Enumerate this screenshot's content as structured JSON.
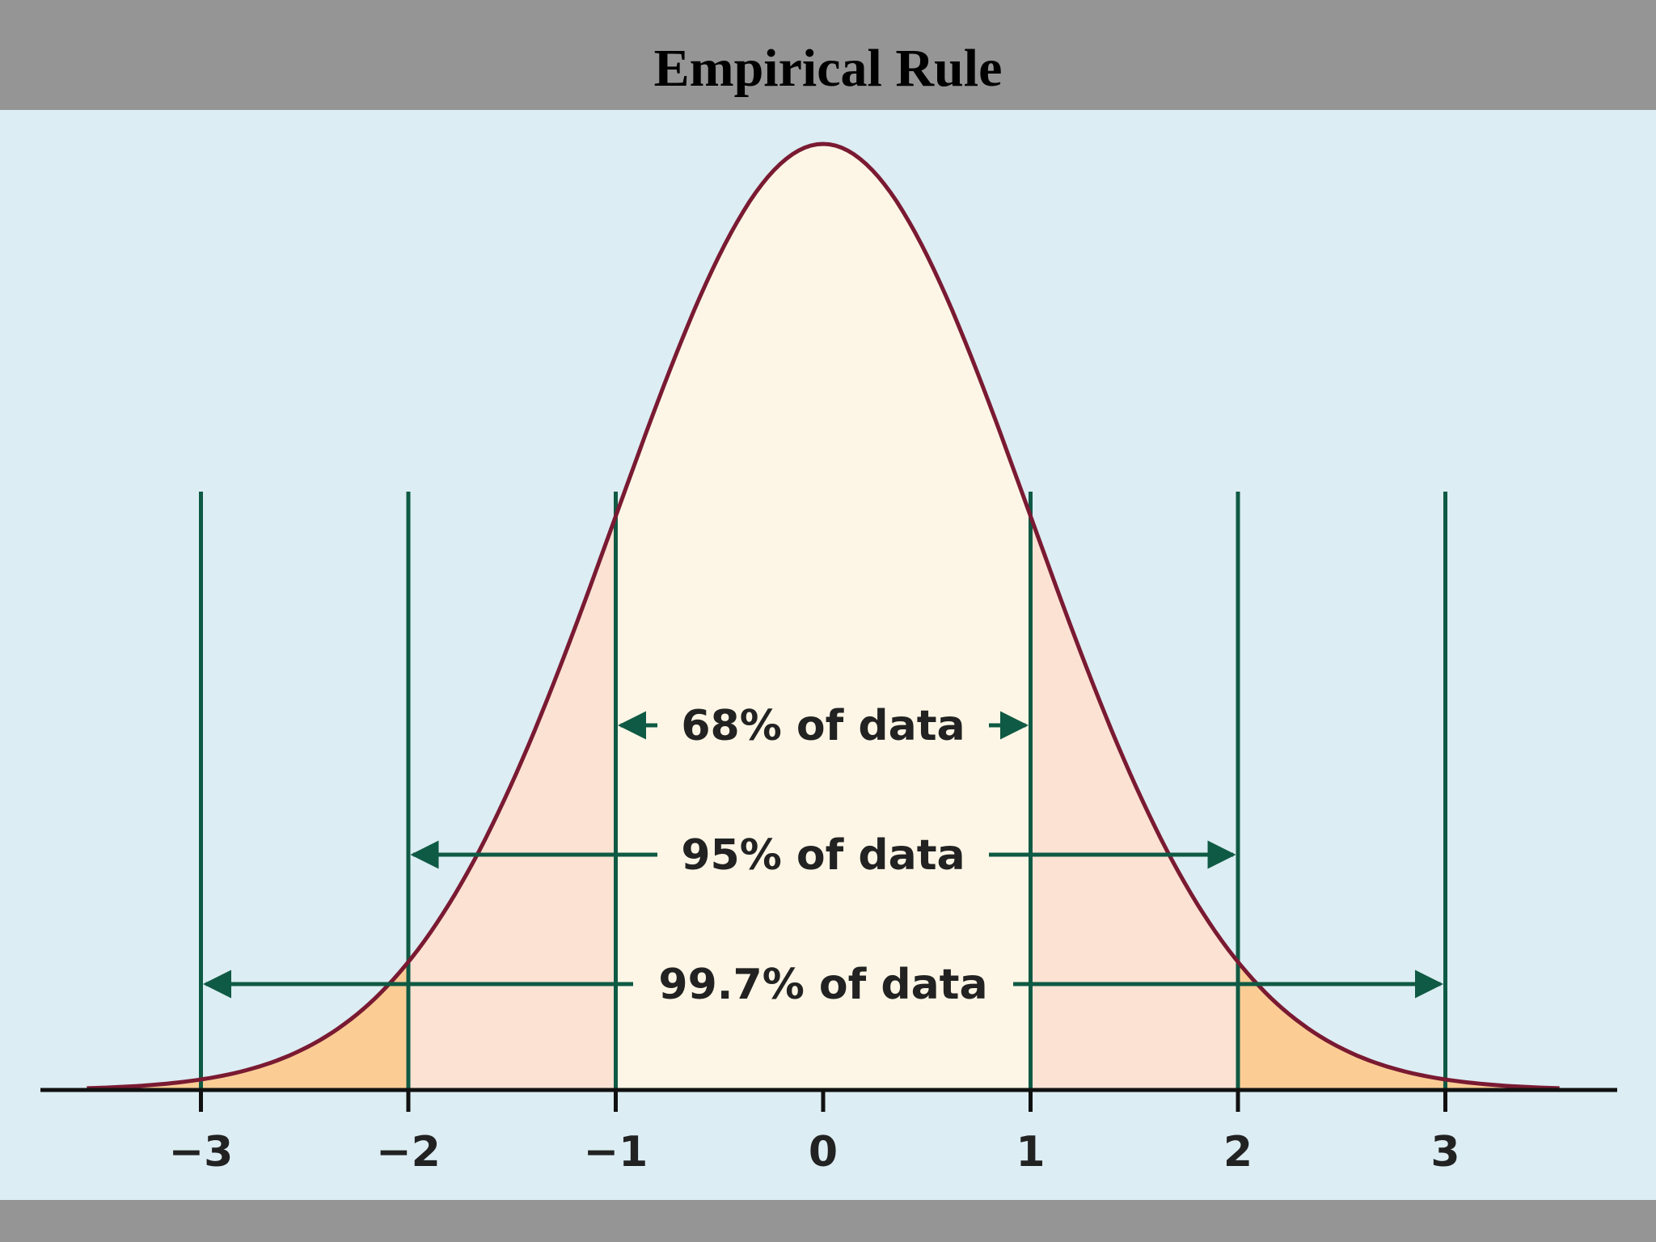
{
  "title": "Empirical Rule",
  "colors": {
    "header": "#959595",
    "panel": "#dcedf3",
    "curve": "#7a1a32",
    "guides": "#0f5a44",
    "axis": "#111111",
    "fill_center": "#fdf6e6",
    "fill_mid": "#fbe2d3",
    "fill_tail": "#fbcd95"
  },
  "axis_ticks": [
    "−3",
    "−2",
    "−1",
    "0",
    "1",
    "2",
    "3"
  ],
  "intervals": [
    {
      "label": "68% of data",
      "from": -1,
      "to": 1
    },
    {
      "label": "95% of data",
      "from": -2,
      "to": 2
    },
    {
      "label": "99.7% of data",
      "from": -3,
      "to": 3
    }
  ]
}
